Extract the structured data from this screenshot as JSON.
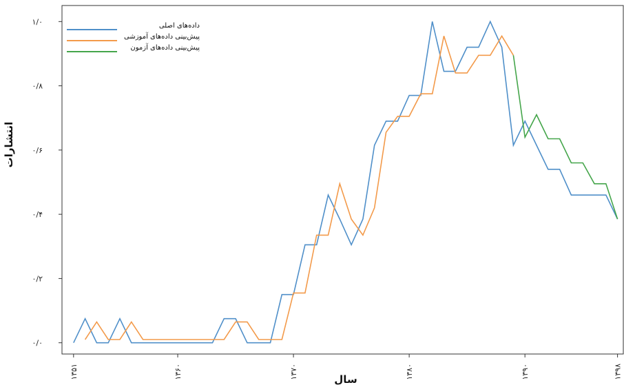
{
  "chart_data": {
    "type": "line",
    "title": "",
    "xlabel": "سال",
    "ylabel": "انتشارات",
    "xlim": [
      1350,
      1398.5
    ],
    "ylim": [
      -0.035,
      1.05
    ],
    "grid": false,
    "legend_position": "top-left",
    "x_ticks": [
      {
        "value": 1351,
        "label": "۱۳۵۱"
      },
      {
        "value": 1360,
        "label": "۱۳۶۰"
      },
      {
        "value": 1370,
        "label": "۱۳۷۰"
      },
      {
        "value": 1380,
        "label": "۱۳۸۰"
      },
      {
        "value": 1390,
        "label": "۱۳۹۰"
      },
      {
        "value": 1398,
        "label": "۱۳۹۸"
      }
    ],
    "y_ticks": [
      {
        "value": 0.0,
        "label": "۰/۰"
      },
      {
        "value": 0.2,
        "label": "۰/۲"
      },
      {
        "value": 0.4,
        "label": "۰/۴"
      },
      {
        "value": 0.6,
        "label": "۰/۶"
      },
      {
        "value": 0.8,
        "label": "۰/۸"
      },
      {
        "value": 1.0,
        "label": "۱/۰"
      }
    ],
    "series": [
      {
        "name": "داده‌های اصلی",
        "color": "#4f8fc9",
        "x": [
          1351,
          1352,
          1353,
          1354,
          1355,
          1356,
          1357,
          1358,
          1359,
          1360,
          1361,
          1362,
          1363,
          1364,
          1365,
          1366,
          1367,
          1368,
          1369,
          1370,
          1371,
          1372,
          1373,
          1374,
          1375,
          1376,
          1377,
          1378,
          1379,
          1380,
          1381,
          1382,
          1383,
          1384,
          1385,
          1386,
          1387,
          1388,
          1389,
          1390,
          1391,
          1392,
          1393,
          1394,
          1395,
          1396,
          1397,
          1398
        ],
        "values": [
          0.0,
          0.075,
          0.0,
          0.0,
          0.075,
          0.0,
          0.0,
          0.0,
          0.0,
          0.0,
          0.0,
          0.0,
          0.0,
          0.075,
          0.075,
          0.0,
          0.0,
          0.0,
          0.15,
          0.15,
          0.305,
          0.305,
          0.46,
          0.385,
          0.305,
          0.385,
          0.615,
          0.69,
          0.69,
          0.77,
          0.77,
          1.0,
          0.845,
          0.845,
          0.92,
          0.92,
          1.0,
          0.92,
          0.615,
          0.69,
          0.615,
          0.54,
          0.54,
          0.46,
          0.46,
          0.46,
          0.46,
          0.385
        ]
      },
      {
        "name": "پیش‌بینی داده‌های آموزشی",
        "color": "#f39a4a",
        "x": [
          1352,
          1353,
          1354,
          1355,
          1356,
          1357,
          1358,
          1359,
          1360,
          1361,
          1362,
          1363,
          1364,
          1365,
          1366,
          1367,
          1368,
          1369,
          1370,
          1371,
          1372,
          1373,
          1374,
          1375,
          1376,
          1377,
          1378,
          1379,
          1380,
          1381,
          1382,
          1383,
          1384,
          1385,
          1386,
          1387,
          1388,
          1389
        ],
        "values": [
          0.01,
          0.065,
          0.01,
          0.01,
          0.065,
          0.01,
          0.01,
          0.01,
          0.01,
          0.01,
          0.01,
          0.01,
          0.01,
          0.065,
          0.065,
          0.01,
          0.01,
          0.01,
          0.155,
          0.155,
          0.335,
          0.335,
          0.495,
          0.385,
          0.335,
          0.42,
          0.655,
          0.705,
          0.705,
          0.775,
          0.775,
          0.955,
          0.84,
          0.84,
          0.895,
          0.895,
          0.955,
          0.895
        ]
      },
      {
        "name": "پیش‌بینی داده‌های آزمون",
        "color": "#44a54a",
        "x": [
          1389,
          1390,
          1391,
          1392,
          1393,
          1394,
          1395,
          1396,
          1397,
          1398
        ],
        "values": [
          0.895,
          0.64,
          0.71,
          0.635,
          0.635,
          0.56,
          0.56,
          0.495,
          0.495,
          0.385
        ]
      }
    ]
  }
}
